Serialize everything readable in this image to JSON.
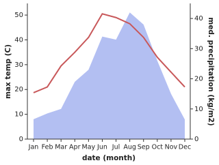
{
  "chart_data": {
    "type": "line-area",
    "ylabel": "max temp (C)",
    "y2label": "med. precipitation (kg/m2)",
    "xlabel": "date (month)",
    "categories": [
      "Jan",
      "Feb",
      "Mar",
      "Apr",
      "May",
      "Jun",
      "Jul",
      "Aug",
      "Sep",
      "Oct",
      "Nov",
      "Dec"
    ],
    "ylim": [
      0,
      54.7
    ],
    "yticks": [
      0,
      10,
      20,
      30,
      40,
      50
    ],
    "y2lim": [
      0,
      45
    ],
    "y2ticks": [
      0,
      10,
      20,
      30,
      40
    ],
    "series": [
      {
        "kind": "area",
        "axis": "y2",
        "color": "#b3bff2",
        "values": [
          6.6,
          8.5,
          10,
          19,
          23,
          34,
          33,
          42,
          38,
          26,
          15,
          6.5
        ]
      },
      {
        "kind": "line",
        "axis": "y",
        "color": "#c8585a",
        "values": [
          18.7,
          21,
          29.5,
          35,
          41,
          50.5,
          49,
          46.5,
          41,
          33,
          27,
          21
        ]
      }
    ]
  }
}
